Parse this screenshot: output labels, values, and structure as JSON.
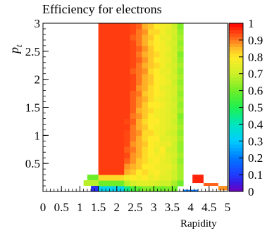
{
  "chart_data": {
    "type": "heatmap",
    "title": "Efficiency for electrons",
    "xlabel": "Rapidity",
    "ylabel": "p_t",
    "xlim": [
      0,
      5
    ],
    "ylim": [
      0,
      3
    ],
    "x_ticks": [
      "0",
      "0.5",
      "1",
      "1.5",
      "2",
      "2.5",
      "3",
      "3.5",
      "4",
      "4.5",
      "5"
    ],
    "y_ticks": [
      "0.5",
      "1",
      "1.5",
      "2",
      "2.5",
      "3"
    ],
    "colorbar": {
      "range": [
        0,
        1
      ],
      "ticks": [
        "0",
        "0.1",
        "0.2",
        "0.3",
        "0.4",
        "0.5",
        "0.6",
        "0.7",
        "0.8",
        "0.9",
        "1"
      ]
    },
    "grid": false,
    "x_bin_edges": [
      1.5,
      2.2,
      2.36,
      2.52,
      2.68,
      2.84,
      3.0,
      3.16,
      3.32,
      3.48,
      3.64,
      3.8
    ],
    "y_bin_edges": [
      0.0,
      0.1,
      0.2,
      0.3,
      0.4,
      0.5,
      0.6,
      0.7,
      0.8,
      0.9,
      1.0,
      1.1,
      1.2,
      1.3,
      1.4,
      1.5,
      1.6,
      1.7,
      1.8,
      1.9,
      2.0,
      2.1,
      2.2,
      2.3,
      2.4,
      2.5,
      2.6,
      2.7,
      2.8,
      2.9,
      3.0
    ],
    "efficiency": [
      [
        0.32,
        0.45,
        0.55,
        0.58,
        0.62,
        0.62,
        0.6,
        0.6,
        0.62,
        0.6,
        null
      ],
      [
        0.6,
        0.68,
        0.72,
        0.74,
        0.74,
        0.74,
        0.72,
        0.7,
        0.7,
        0.66,
        0.6
      ],
      [
        0.82,
        0.78,
        0.8,
        0.78,
        0.8,
        0.76,
        0.78,
        0.74,
        0.74,
        0.7,
        0.66
      ],
      [
        0.95,
        0.86,
        0.84,
        0.8,
        0.82,
        0.78,
        0.8,
        0.76,
        0.74,
        0.7,
        0.66
      ],
      [
        0.95,
        0.88,
        0.86,
        0.84,
        0.8,
        0.8,
        0.78,
        0.76,
        0.76,
        0.72,
        0.66
      ],
      [
        0.95,
        0.92,
        0.88,
        0.84,
        0.82,
        0.78,
        0.8,
        0.76,
        0.74,
        0.7,
        0.64
      ],
      [
        0.95,
        0.94,
        0.88,
        0.86,
        0.82,
        0.8,
        0.78,
        0.78,
        0.74,
        0.72,
        0.66
      ],
      [
        0.95,
        0.92,
        0.9,
        0.86,
        0.82,
        0.8,
        0.76,
        0.8,
        0.72,
        0.7,
        0.64
      ],
      [
        0.95,
        0.94,
        0.88,
        0.86,
        0.84,
        0.8,
        0.78,
        0.76,
        0.76,
        0.7,
        0.64
      ],
      [
        0.95,
        0.94,
        0.9,
        0.86,
        0.82,
        0.8,
        0.8,
        0.74,
        0.74,
        0.72,
        0.66
      ],
      [
        0.95,
        0.94,
        0.9,
        0.88,
        0.82,
        0.82,
        0.78,
        0.76,
        0.72,
        0.7,
        0.64
      ],
      [
        0.95,
        0.95,
        0.9,
        0.86,
        0.84,
        0.8,
        0.78,
        0.76,
        0.74,
        0.72,
        0.66
      ],
      [
        0.95,
        0.94,
        0.92,
        0.86,
        0.82,
        0.8,
        0.8,
        0.76,
        0.74,
        0.7,
        0.64
      ],
      [
        0.95,
        0.95,
        0.9,
        0.88,
        0.84,
        0.8,
        0.78,
        0.76,
        0.74,
        0.72,
        0.62
      ],
      [
        0.95,
        0.95,
        0.92,
        0.86,
        0.84,
        0.82,
        0.78,
        0.76,
        0.74,
        0.7,
        0.66
      ],
      [
        0.95,
        0.95,
        0.92,
        0.88,
        0.84,
        0.8,
        0.8,
        0.78,
        0.74,
        0.72,
        0.64
      ],
      [
        0.95,
        0.95,
        0.92,
        0.88,
        0.86,
        0.82,
        0.78,
        0.76,
        0.74,
        0.7,
        0.66
      ],
      [
        0.95,
        0.95,
        0.92,
        0.9,
        0.84,
        0.82,
        0.8,
        0.78,
        0.74,
        0.72,
        0.64
      ],
      [
        0.95,
        0.95,
        0.94,
        0.88,
        0.86,
        0.82,
        0.8,
        0.76,
        0.74,
        0.72,
        0.66
      ],
      [
        0.95,
        0.95,
        0.94,
        0.9,
        0.86,
        0.84,
        0.8,
        0.78,
        0.76,
        0.7,
        0.64
      ],
      [
        0.95,
        0.95,
        0.94,
        0.9,
        0.86,
        0.84,
        0.8,
        0.78,
        0.74,
        0.72,
        0.66
      ],
      [
        0.95,
        0.95,
        0.92,
        0.9,
        0.88,
        0.82,
        0.8,
        0.76,
        0.76,
        0.7,
        0.64
      ],
      [
        0.95,
        0.95,
        0.94,
        0.9,
        0.86,
        0.84,
        0.82,
        0.78,
        0.74,
        0.72,
        0.66
      ],
      [
        0.95,
        0.95,
        0.94,
        0.92,
        0.88,
        0.84,
        0.8,
        0.78,
        0.76,
        0.7,
        0.64
      ],
      [
        0.95,
        0.95,
        0.94,
        0.9,
        0.86,
        0.84,
        0.82,
        0.78,
        0.74,
        0.72,
        0.62
      ],
      [
        0.95,
        0.95,
        0.94,
        0.92,
        0.88,
        0.84,
        0.8,
        0.78,
        0.76,
        0.7,
        0.66
      ],
      [
        0.95,
        0.95,
        0.94,
        0.9,
        0.86,
        0.82,
        0.8,
        0.78,
        0.74,
        0.72,
        0.64
      ],
      [
        0.95,
        0.95,
        0.92,
        0.9,
        0.86,
        0.84,
        0.8,
        0.76,
        0.76,
        0.7,
        0.66
      ],
      [
        0.95,
        0.95,
        0.94,
        0.9,
        0.88,
        0.82,
        0.82,
        0.78,
        0.74,
        0.72,
        0.64
      ],
      [
        0.95,
        0.95,
        0.94,
        0.92,
        0.86,
        0.84,
        0.8,
        0.78,
        0.76,
        0.7,
        0.62
      ]
    ],
    "extra_bins": [
      {
        "x": [
          1.1,
          1.5
        ],
        "y": [
          0.1,
          0.2
        ],
        "value": 0.68
      },
      {
        "x": [
          1.2,
          1.5
        ],
        "y": [
          0.2,
          0.3
        ],
        "value": 0.6
      },
      {
        "x": [
          1.3,
          1.5
        ],
        "y": [
          0.0,
          0.1
        ],
        "value": 0.08
      },
      {
        "x": [
          1.5,
          2.2
        ],
        "y": [
          0.0,
          0.03
        ],
        "value": 0.32
      },
      {
        "x": [
          3.8,
          4.2
        ],
        "y": [
          0.0,
          0.03
        ],
        "value": 0.2
      },
      {
        "x": [
          4.05,
          4.35
        ],
        "y": [
          0.15,
          0.3
        ],
        "value": 0.97
      },
      {
        "x": [
          4.35,
          4.75
        ],
        "y": [
          0.1,
          0.15
        ],
        "value": 0.92
      },
      {
        "x": [
          4.75,
          5.0
        ],
        "y": [
          0.02,
          0.1
        ],
        "value": 0.88
      }
    ]
  }
}
